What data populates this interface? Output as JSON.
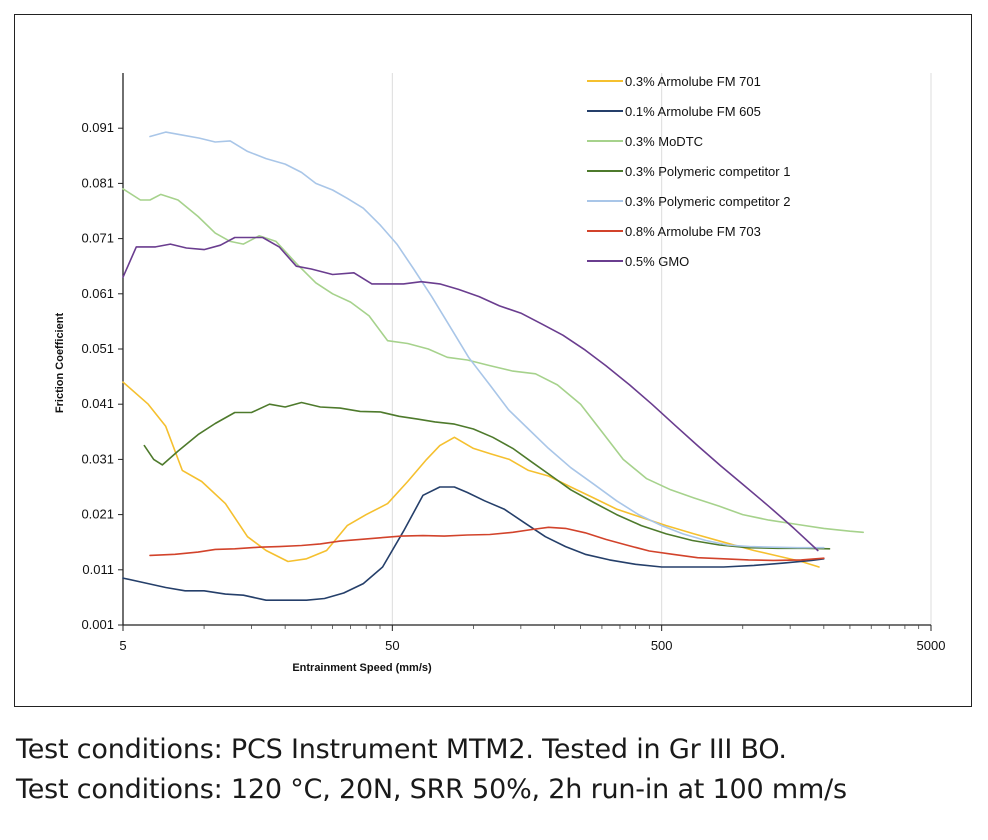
{
  "chart_data": {
    "type": "line",
    "title": "",
    "xlabel": "Entrainment Speed (mm/s)",
    "ylabel": "Friction Coefficient",
    "xscale": "log",
    "xlim": [
      5,
      5000
    ],
    "ylim": [
      0.001,
      0.101
    ],
    "x_ticks": [
      "5",
      "50",
      "500",
      "5000"
    ],
    "y_ticks": [
      "0.001",
      "0.011",
      "0.021",
      "0.031",
      "0.041",
      "0.051",
      "0.061",
      "0.071",
      "0.081",
      "0.091"
    ],
    "grid": "vertical major lines only",
    "legend_position": "top-right",
    "series": [
      {
        "name": "0.3% Armolube FM 701",
        "color": "#f5c02f",
        "x": [
          5,
          6.2,
          7.2,
          8.3,
          9.8,
          12,
          14.5,
          17,
          20.5,
          24,
          28.5,
          34,
          40,
          48,
          57,
          67,
          75,
          85,
          100,
          116,
          136,
          160,
          190,
          230,
          280,
          340,
          420,
          520,
          660,
          850,
          1100,
          1350,
          1650,
          1920
        ],
        "y": [
          0.045,
          0.041,
          0.037,
          0.029,
          0.027,
          0.023,
          0.017,
          0.0145,
          0.0125,
          0.013,
          0.0145,
          0.019,
          0.021,
          0.023,
          0.027,
          0.031,
          0.0335,
          0.035,
          0.033,
          0.032,
          0.031,
          0.029,
          0.028,
          0.026,
          0.024,
          0.022,
          0.0205,
          0.019,
          0.0175,
          0.016,
          0.0145,
          0.0135,
          0.0125,
          0.0115
        ]
      },
      {
        "name": "0.1% Armolube FM 605",
        "color": "#253f6a",
        "x": [
          5,
          6.2,
          7.2,
          8.5,
          10,
          12,
          14,
          17,
          20,
          24,
          28,
          33,
          39,
          46,
          55,
          65,
          75,
          85,
          95,
          110,
          130,
          155,
          185,
          220,
          260,
          320,
          400,
          500,
          650,
          850,
          1100,
          1400,
          1800,
          2000
        ],
        "y": [
          0.0095,
          0.0085,
          0.0078,
          0.0072,
          0.0072,
          0.0066,
          0.0064,
          0.0055,
          0.0055,
          0.0055,
          0.0058,
          0.0068,
          0.0085,
          0.0115,
          0.018,
          0.0245,
          0.026,
          0.026,
          0.025,
          0.0235,
          0.022,
          0.0195,
          0.017,
          0.0152,
          0.0138,
          0.0128,
          0.012,
          0.0115,
          0.0115,
          0.0115,
          0.0118,
          0.0122,
          0.0127,
          0.013
        ]
      },
      {
        "name": "0.3% MoDTC",
        "color": "#a6d28c",
        "x": [
          5,
          5.8,
          6.3,
          6.9,
          8.0,
          9.5,
          11,
          12.5,
          14,
          16,
          18.5,
          22,
          26,
          30,
          35,
          41,
          48,
          57,
          68,
          80,
          95,
          115,
          140,
          170,
          205,
          250,
          300,
          360,
          440,
          540,
          660,
          820,
          1000,
          1250,
          1600,
          2000,
          2500,
          2800
        ],
        "y": [
          0.08,
          0.078,
          0.078,
          0.079,
          0.078,
          0.075,
          0.072,
          0.0705,
          0.07,
          0.0715,
          0.0705,
          0.0665,
          0.063,
          0.061,
          0.0595,
          0.057,
          0.0525,
          0.052,
          0.051,
          0.0495,
          0.049,
          0.048,
          0.047,
          0.0465,
          0.0445,
          0.041,
          0.036,
          0.031,
          0.0275,
          0.0255,
          0.024,
          0.0225,
          0.021,
          0.02,
          0.0192,
          0.0185,
          0.018,
          0.0178
        ]
      },
      {
        "name": "0.3% Polymeric competitor 1",
        "color": "#4e7a2c",
        "x": [
          6,
          6.5,
          7,
          8,
          9.5,
          11,
          13,
          15,
          17.5,
          20,
          23,
          27,
          32,
          38,
          45,
          53,
          62,
          72,
          85,
          100,
          118,
          140,
          165,
          195,
          230,
          280,
          340,
          420,
          520,
          650,
          820,
          1050,
          1350,
          1700,
          2100
        ],
        "y": [
          0.0335,
          0.031,
          0.03,
          0.0325,
          0.0355,
          0.0375,
          0.0395,
          0.0395,
          0.041,
          0.0405,
          0.0413,
          0.0405,
          0.0403,
          0.0397,
          0.0396,
          0.0388,
          0.0383,
          0.0378,
          0.0374,
          0.0365,
          0.035,
          0.033,
          0.0305,
          0.028,
          0.0255,
          0.0232,
          0.021,
          0.019,
          0.0175,
          0.0163,
          0.0155,
          0.015,
          0.0149,
          0.0149,
          0.0148
        ]
      },
      {
        "name": "0.3% Polymeric competitor 2",
        "color": "#a9c6e8",
        "x": [
          6.3,
          7.2,
          8.2,
          9.6,
          11,
          12.5,
          14.5,
          17,
          20,
          23,
          26,
          30,
          34,
          39,
          45,
          52,
          60,
          70,
          82,
          96,
          115,
          135,
          160,
          190,
          230,
          280,
          340,
          410,
          500,
          600,
          730,
          880,
          1060,
          1300,
          1600,
          2000
        ],
        "y": [
          0.0895,
          0.0903,
          0.0898,
          0.0892,
          0.0885,
          0.0887,
          0.0868,
          0.0855,
          0.0845,
          0.083,
          0.081,
          0.0798,
          0.0783,
          0.0765,
          0.0735,
          0.07,
          0.0655,
          0.0605,
          0.055,
          0.0495,
          0.0445,
          0.04,
          0.0365,
          0.033,
          0.0295,
          0.0265,
          0.0235,
          0.021,
          0.019,
          0.0175,
          0.0163,
          0.0155,
          0.0152,
          0.0151,
          0.015,
          0.015
        ]
      },
      {
        "name": "0.8% Armolube FM 703",
        "color": "#d2432b",
        "x": [
          6.3,
          7.8,
          9.5,
          11,
          13,
          16,
          19,
          23,
          27,
          32,
          38,
          45,
          54,
          65,
          78,
          95,
          115,
          140,
          165,
          190,
          220,
          260,
          310,
          370,
          450,
          550,
          680,
          850,
          1050,
          1300,
          1650,
          2000
        ],
        "y": [
          0.0136,
          0.0138,
          0.0142,
          0.0147,
          0.0148,
          0.0151,
          0.0152,
          0.0154,
          0.0157,
          0.0162,
          0.0165,
          0.0168,
          0.0171,
          0.0172,
          0.0171,
          0.0173,
          0.0174,
          0.0178,
          0.0183,
          0.0187,
          0.0185,
          0.0177,
          0.0165,
          0.0155,
          0.0144,
          0.0138,
          0.0132,
          0.013,
          0.0128,
          0.0127,
          0.0128,
          0.0131
        ]
      },
      {
        "name": "0.5% GMO",
        "color": "#6a3d8f",
        "x": [
          5,
          5.6,
          6.6,
          7.5,
          8.6,
          10,
          11.5,
          13,
          14.5,
          16.5,
          19,
          22,
          25,
          30,
          36,
          42,
          48,
          55,
          64,
          75,
          88,
          105,
          125,
          150,
          180,
          215,
          260,
          310,
          380,
          460,
          560,
          680,
          830,
          1000,
          1250,
          1550,
          1900
        ],
        "y": [
          0.064,
          0.0695,
          0.0695,
          0.07,
          0.0693,
          0.069,
          0.0698,
          0.0712,
          0.0712,
          0.0712,
          0.0695,
          0.066,
          0.0655,
          0.0645,
          0.0648,
          0.0628,
          0.0628,
          0.0628,
          0.0632,
          0.0628,
          0.0618,
          0.0605,
          0.0588,
          0.0575,
          0.0555,
          0.0535,
          0.0508,
          0.048,
          0.0445,
          0.041,
          0.0372,
          0.0335,
          0.0298,
          0.0265,
          0.0225,
          0.0185,
          0.0145
        ]
      }
    ]
  },
  "captions": {
    "line1": "Test conditions: PCS Instrument MTM2. Tested in Gr III BO.",
    "line2": "Test conditions: 120 °C, 20N, SRR 50%, 2h run-in at 100 mm/s"
  }
}
